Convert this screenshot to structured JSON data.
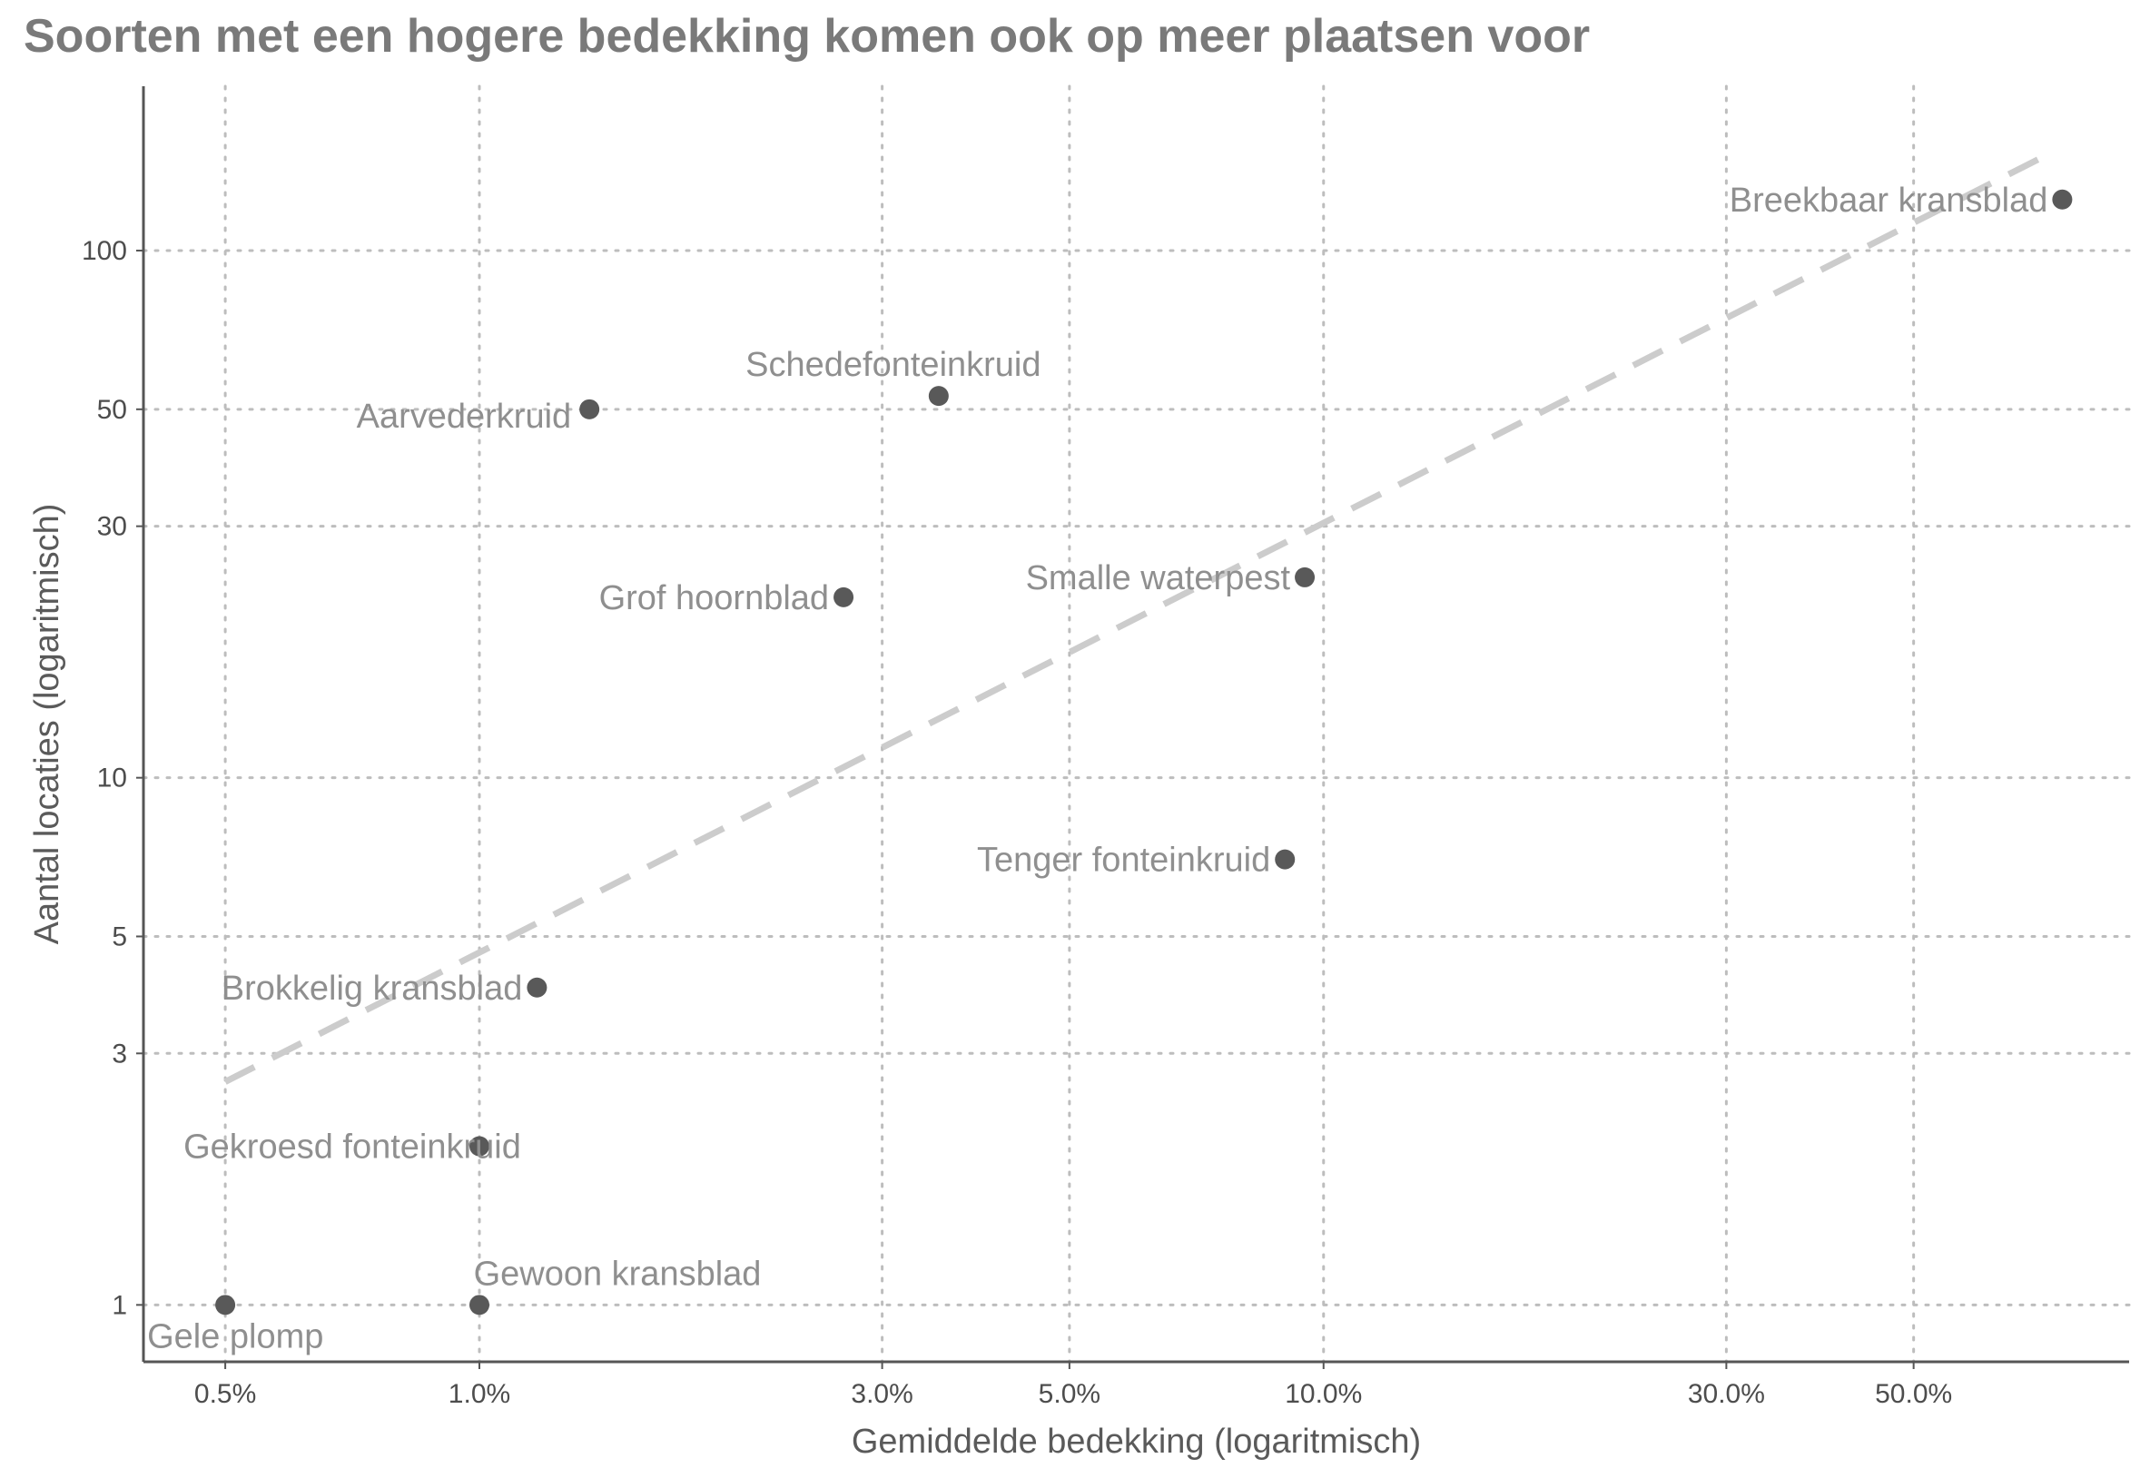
{
  "chart_data": {
    "type": "scatter",
    "title": "Soorten met een hogere bedekking komen ook op meer plaatsen voor",
    "xlabel": "Gemiddelde bedekking (logaritmisch)",
    "ylabel": "Aantal locaties (logaritmisch)",
    "x_scale": "log",
    "y_scale": "log",
    "xlim": [
      0.4,
      90
    ],
    "ylim": [
      0.78,
      205
    ],
    "x_ticks": [
      {
        "value": 0.5,
        "label": "0.5%"
      },
      {
        "value": 1,
        "label": "1.0%"
      },
      {
        "value": 3,
        "label": "3.0%"
      },
      {
        "value": 5,
        "label": "5.0%"
      },
      {
        "value": 10,
        "label": "10.0%"
      },
      {
        "value": 30,
        "label": "30.0%"
      },
      {
        "value": 50,
        "label": "50.0%"
      }
    ],
    "y_ticks": [
      {
        "value": 1,
        "label": "1"
      },
      {
        "value": 3,
        "label": "3"
      },
      {
        "value": 5,
        "label": "5"
      },
      {
        "value": 10,
        "label": "10"
      },
      {
        "value": 30,
        "label": "30"
      },
      {
        "value": 50,
        "label": "50"
      },
      {
        "value": 100,
        "label": "100"
      }
    ],
    "grid": true,
    "points": [
      {
        "label": "Breekbaar kransblad",
        "x": 75,
        "y": 125,
        "label_side": "left",
        "label_offset": "middle"
      },
      {
        "label": "Schedefonteinkruid",
        "x": 3.5,
        "y": 53,
        "label_side": "left",
        "label_offset": "above"
      },
      {
        "label": "Aarvederkruid",
        "x": 1.35,
        "y": 50,
        "label_side": "left",
        "label_offset": "below"
      },
      {
        "label": "Smalle waterpest",
        "x": 9.5,
        "y": 24,
        "label_side": "left",
        "label_offset": "middle"
      },
      {
        "label": "Grof hoornblad",
        "x": 2.7,
        "y": 22,
        "label_side": "left",
        "label_offset": "middle"
      },
      {
        "label": "Tenger fonteinkruid",
        "x": 9.0,
        "y": 7,
        "label_side": "left",
        "label_offset": "middle"
      },
      {
        "label": "Brokkelig kransblad",
        "x": 1.17,
        "y": 4,
        "label_side": "left",
        "label_offset": "middle"
      },
      {
        "label": "Gekroesd fonteinkruid",
        "x": 1.0,
        "y": 2,
        "label_side": "center",
        "label_offset": "middle"
      },
      {
        "label": "Gewoon kransblad",
        "x": 1.0,
        "y": 1,
        "label_side": "right",
        "label_offset": "above"
      },
      {
        "label": "Gele plomp",
        "x": 0.5,
        "y": 1,
        "label_side": "right",
        "label_offset": "below"
      }
    ],
    "trend_line": {
      "style": "dashed",
      "x": [
        0.5,
        72
      ],
      "y": [
        2.65,
        152
      ]
    },
    "colors": {
      "points": "#595959",
      "point_labels": "#8f8f8f",
      "trend": "#cccccc",
      "grid": "#bdbdbd",
      "axis": "#555555",
      "title": "#7a7a7a"
    }
  }
}
